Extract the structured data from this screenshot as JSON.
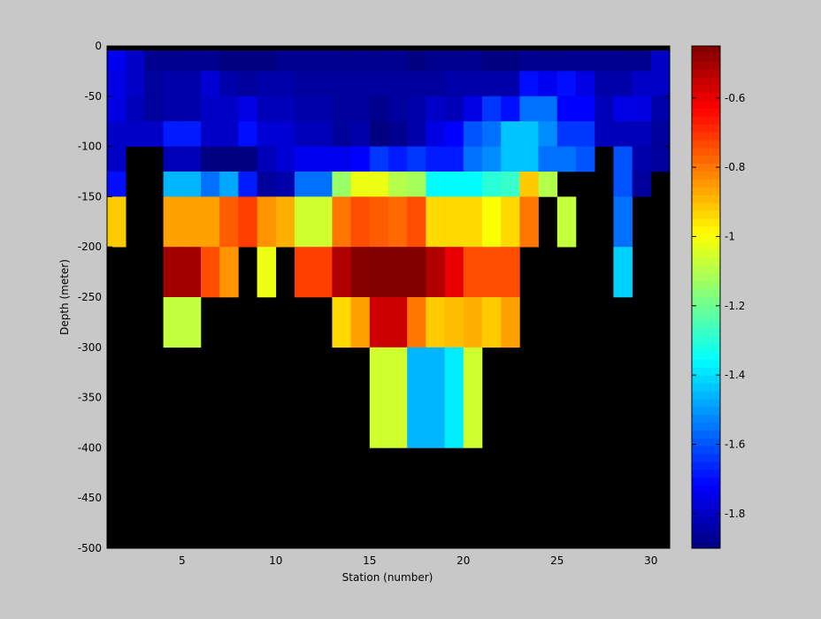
{
  "chart_data": {
    "type": "heatmap",
    "title": "",
    "xlabel": "Station (number)",
    "ylabel": "Depth (meter)",
    "x_range": [
      1,
      31
    ],
    "y_range": [
      -500,
      0
    ],
    "x_ticks": [
      5,
      10,
      15,
      20,
      25,
      30
    ],
    "y_ticks": [
      0,
      -50,
      -100,
      -150,
      -200,
      -250,
      -300,
      -350,
      -400,
      -450,
      -500
    ],
    "stations": [
      1,
      2,
      3,
      4,
      5,
      6,
      7,
      8,
      9,
      10,
      11,
      12,
      13,
      14,
      15,
      16,
      17,
      18,
      19,
      20,
      21,
      22,
      23,
      24,
      25,
      26,
      27,
      28,
      29,
      30
    ],
    "depth_bins": [
      {
        "top": 0,
        "bottom": -25
      },
      {
        "top": -25,
        "bottom": -50
      },
      {
        "top": -50,
        "bottom": -75
      },
      {
        "top": -75,
        "bottom": -100
      },
      {
        "top": -100,
        "bottom": -125
      },
      {
        "top": -125,
        "bottom": -150
      },
      {
        "top": -150,
        "bottom": -200
      },
      {
        "top": -200,
        "bottom": -250
      },
      {
        "top": -250,
        "bottom": -300
      },
      {
        "top": -300,
        "bottom": -400
      }
    ],
    "values": [
      [
        -1.74,
        -1.8,
        -1.88,
        -1.88,
        -1.88,
        -1.88,
        -1.9,
        -1.9,
        -1.9,
        -1.88,
        -1.88,
        -1.88,
        -1.88,
        -1.88,
        -1.88,
        -1.88,
        -1.9,
        -1.88,
        -1.88,
        -1.88,
        -1.9,
        -1.9,
        -1.88,
        -1.88,
        -1.88,
        -1.88,
        -1.88,
        -1.88,
        -1.88,
        -1.8
      ],
      [
        -1.76,
        -1.8,
        -1.86,
        -1.84,
        -1.84,
        -1.78,
        -1.84,
        -1.86,
        -1.84,
        -1.84,
        -1.86,
        -1.86,
        -1.86,
        -1.86,
        -1.86,
        -1.86,
        -1.86,
        -1.86,
        -1.84,
        -1.84,
        -1.84,
        -1.84,
        -1.7,
        -1.74,
        -1.7,
        -1.76,
        -1.84,
        -1.84,
        -1.8,
        -1.8
      ],
      [
        -1.76,
        -1.82,
        -1.86,
        -1.84,
        -1.84,
        -1.8,
        -1.8,
        -1.76,
        -1.82,
        -1.82,
        -1.84,
        -1.84,
        -1.86,
        -1.86,
        -1.88,
        -1.86,
        -1.84,
        -1.8,
        -1.82,
        -1.76,
        -1.64,
        -1.7,
        -1.56,
        -1.56,
        -1.72,
        -1.72,
        -1.82,
        -1.76,
        -1.76,
        -1.84
      ],
      [
        -1.8,
        -1.8,
        -1.8,
        -1.68,
        -1.68,
        -1.8,
        -1.8,
        -1.7,
        -1.78,
        -1.78,
        -1.82,
        -1.82,
        -1.86,
        -1.84,
        -1.9,
        -1.88,
        -1.84,
        -1.76,
        -1.72,
        -1.6,
        -1.56,
        -1.44,
        -1.44,
        -1.52,
        -1.64,
        -1.64,
        -1.82,
        -1.82,
        -1.82,
        -1.86
      ],
      [
        -1.8,
        null,
        null,
        -1.82,
        -1.82,
        -1.9,
        -1.9,
        -1.9,
        -1.82,
        -1.78,
        -1.74,
        -1.74,
        -1.74,
        -1.72,
        -1.64,
        -1.68,
        -1.64,
        -1.68,
        -1.68,
        -1.56,
        -1.52,
        -1.44,
        -1.44,
        -1.56,
        -1.56,
        -1.6,
        null,
        -1.6,
        -1.84,
        -1.86
      ],
      [
        -1.7,
        null,
        null,
        -1.46,
        -1.46,
        -1.56,
        -1.48,
        -1.68,
        -1.86,
        -1.84,
        -1.56,
        -1.56,
        -1.14,
        -1.02,
        -1.02,
        -1.1,
        -1.12,
        -1.36,
        -1.36,
        -1.36,
        -1.3,
        -1.28,
        -0.92,
        -1.1,
        null,
        null,
        null,
        -1.6,
        -1.86,
        null
      ],
      [
        -0.92,
        null,
        null,
        -0.86,
        -0.86,
        -0.86,
        -0.76,
        -0.72,
        -0.84,
        -0.88,
        -1.06,
        -1.06,
        -0.8,
        -0.74,
        -0.76,
        -0.78,
        -0.74,
        -0.94,
        -0.94,
        -0.94,
        -1.0,
        -0.94,
        -0.8,
        null,
        -1.08,
        null,
        null,
        -1.56,
        null,
        null
      ],
      [
        null,
        null,
        null,
        -0.5,
        -0.5,
        -0.74,
        -0.84,
        null,
        -1.02,
        null,
        -0.72,
        -0.72,
        -0.52,
        -0.46,
        -0.44,
        -0.44,
        -0.44,
        -0.52,
        -0.6,
        -0.74,
        -0.74,
        -0.74,
        null,
        null,
        null,
        null,
        null,
        -1.42,
        null,
        null
      ],
      [
        null,
        null,
        null,
        -1.08,
        -1.08,
        null,
        null,
        null,
        null,
        null,
        null,
        null,
        -0.94,
        -0.86,
        -0.56,
        -0.56,
        -0.8,
        -0.92,
        -0.9,
        -0.88,
        -0.92,
        -0.86,
        null,
        null,
        null,
        null,
        null,
        null,
        null,
        null
      ],
      [
        null,
        null,
        null,
        null,
        null,
        null,
        null,
        null,
        null,
        null,
        null,
        null,
        null,
        null,
        -1.06,
        -1.06,
        -1.46,
        -1.46,
        -1.38,
        -1.06,
        null,
        null,
        null,
        null,
        null,
        null,
        null,
        null,
        null,
        null
      ]
    ],
    "colorbar": {
      "range": [
        -1.9,
        -0.45
      ],
      "ticks": [
        -0.6,
        -0.8,
        -1,
        -1.2,
        -1.4,
        -1.6,
        -1.8
      ],
      "tick_labels": [
        "-0.6",
        "-0.8",
        "-1",
        "-1.2",
        "-1.4",
        "-1.6",
        "-1.8"
      ],
      "colormap": "jet"
    },
    "colors": {
      "figure_background": "#c8c8c8",
      "axes_background": "#000000",
      "missing_data": "#000000"
    }
  }
}
